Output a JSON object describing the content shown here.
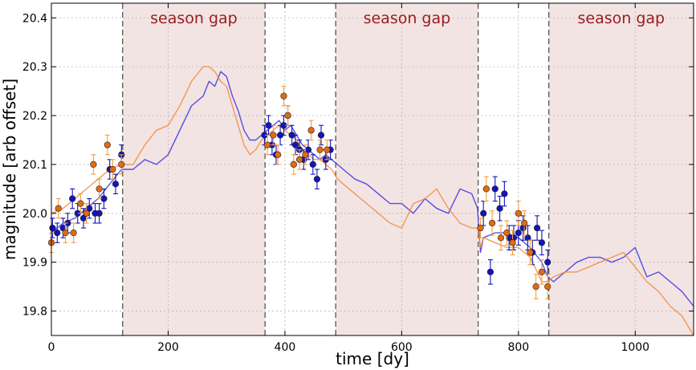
{
  "chart_data": {
    "type": "line",
    "title": "",
    "xlabel": "time [dy]",
    "ylabel": "magnitude [arb offset]",
    "xlim": [
      0,
      1100
    ],
    "ylim": [
      19.75,
      20.43
    ],
    "xticks": [
      0,
      200,
      400,
      600,
      800,
      1000
    ],
    "yticks": [
      19.8,
      19.9,
      20.0,
      20.1,
      20.2,
      20.3,
      20.4
    ],
    "grid": true,
    "legend": "none",
    "colors": {
      "blue_line": "#3a33e0",
      "orange_line": "#f28a3a",
      "blue_points": "#1414b8",
      "orange_points": "#e36a12",
      "orange_errorbar": "#f0a040",
      "gap_fill": "#f3e4e4",
      "gap_text": "#9b1c1c",
      "gap_border": "#555555"
    },
    "shaded_regions": [
      {
        "label": "season gap",
        "x0": 122,
        "x1": 366
      },
      {
        "label": "season gap",
        "x0": 487,
        "x1": 731
      },
      {
        "label": "season gap",
        "x0": 852,
        "x1": 1100
      }
    ],
    "series": [
      {
        "style": "line",
        "color": "#3a33e0",
        "x": [
          0,
          20,
          40,
          60,
          80,
          100,
          120,
          140,
          160,
          180,
          200,
          220,
          240,
          260,
          270,
          280,
          290,
          300,
          310,
          320,
          330,
          340,
          350,
          360,
          370,
          380,
          390,
          400,
          410,
          420,
          430,
          440,
          450,
          460,
          470,
          480,
          490,
          500,
          520,
          540,
          560,
          580,
          600,
          620,
          640,
          660,
          680,
          700,
          720,
          730,
          735,
          740,
          760,
          780,
          800,
          820,
          840,
          850,
          860,
          880,
          900,
          920,
          940,
          960,
          980,
          1000,
          1020,
          1040,
          1060,
          1080,
          1100
        ],
        "y": [
          19.96,
          19.98,
          19.99,
          20.01,
          20.03,
          20.06,
          20.09,
          20.09,
          20.11,
          20.1,
          20.12,
          20.17,
          20.22,
          20.24,
          20.27,
          20.26,
          20.29,
          20.28,
          20.24,
          20.21,
          20.17,
          20.15,
          20.15,
          20.16,
          20.17,
          20.18,
          20.19,
          20.17,
          20.18,
          20.16,
          20.14,
          20.13,
          20.12,
          20.11,
          20.12,
          20.11,
          20.1,
          20.09,
          20.07,
          20.06,
          20.04,
          20.02,
          20.02,
          20.0,
          20.03,
          20.01,
          20.0,
          20.05,
          20.04,
          20.01,
          19.92,
          19.95,
          19.96,
          19.96,
          19.95,
          19.93,
          19.9,
          19.87,
          19.86,
          19.88,
          19.9,
          19.91,
          19.91,
          19.9,
          19.91,
          19.93,
          19.87,
          19.88,
          19.86,
          19.84,
          19.81
        ]
      },
      {
        "style": "line",
        "color": "#f28a3a",
        "x": [
          0,
          20,
          40,
          60,
          80,
          100,
          120,
          140,
          160,
          180,
          200,
          220,
          240,
          260,
          270,
          280,
          290,
          300,
          310,
          320,
          330,
          340,
          350,
          360,
          370,
          380,
          390,
          400,
          410,
          420,
          430,
          440,
          450,
          460,
          470,
          480,
          490,
          500,
          520,
          540,
          560,
          580,
          600,
          620,
          640,
          660,
          680,
          700,
          720,
          730,
          735,
          740,
          760,
          780,
          800,
          820,
          840,
          850,
          860,
          880,
          900,
          920,
          940,
          960,
          980,
          1000,
          1020,
          1040,
          1060,
          1080,
          1100
        ],
        "y": [
          20.0,
          20.01,
          20.03,
          20.05,
          20.07,
          20.09,
          20.1,
          20.1,
          20.14,
          20.17,
          20.18,
          20.22,
          20.27,
          20.3,
          20.3,
          20.29,
          20.27,
          20.26,
          20.22,
          20.18,
          20.14,
          20.12,
          20.13,
          20.15,
          20.16,
          20.17,
          20.18,
          20.17,
          20.16,
          20.15,
          20.13,
          20.12,
          20.11,
          20.11,
          20.1,
          20.09,
          20.07,
          20.06,
          20.04,
          20.02,
          20.0,
          19.98,
          19.97,
          20.02,
          20.03,
          20.05,
          20.01,
          19.98,
          19.97,
          19.97,
          19.93,
          19.95,
          19.94,
          19.93,
          19.93,
          19.91,
          19.86,
          19.86,
          19.87,
          19.88,
          19.88,
          19.89,
          19.9,
          19.91,
          19.92,
          19.89,
          19.86,
          19.84,
          19.81,
          19.79,
          19.75
        ]
      },
      {
        "style": "points",
        "color": "#1414b8",
        "x": [
          2,
          10,
          20,
          28,
          36,
          45,
          55,
          65,
          75,
          82,
          90,
          100,
          110,
          120,
          365,
          372,
          378,
          385,
          392,
          398,
          405,
          412,
          418,
          425,
          432,
          440,
          448,
          455,
          462,
          470,
          478,
          740,
          752,
          760,
          768,
          776,
          784,
          792,
          800,
          808,
          816,
          824,
          832,
          840,
          850
        ],
        "y": [
          19.97,
          19.96,
          19.97,
          19.98,
          20.03,
          20.0,
          19.99,
          20.01,
          20.0,
          20.0,
          20.03,
          20.09,
          20.06,
          20.12,
          20.16,
          20.18,
          20.14,
          20.12,
          20.16,
          20.18,
          20.2,
          20.16,
          20.14,
          20.13,
          20.11,
          20.13,
          20.1,
          20.07,
          20.16,
          20.11,
          20.13,
          20.0,
          19.88,
          20.05,
          20.01,
          20.04,
          19.95,
          19.95,
          19.96,
          19.97,
          19.95,
          19.92,
          19.97,
          19.94,
          19.9
        ],
        "yerr": [
          0.02,
          0.02,
          0.02,
          0.02,
          0.02,
          0.02,
          0.02,
          0.02,
          0.02,
          0.02,
          0.02,
          0.02,
          0.02,
          0.02,
          0.02,
          0.02,
          0.02,
          0.02,
          0.02,
          0.02,
          0.02,
          0.02,
          0.02,
          0.02,
          0.02,
          0.02,
          0.02,
          0.02,
          0.02,
          0.02,
          0.02,
          0.025,
          0.025,
          0.025,
          0.025,
          0.025,
          0.025,
          0.025,
          0.025,
          0.025,
          0.025,
          0.025,
          0.025,
          0.025,
          0.025
        ]
      },
      {
        "style": "points",
        "color": "#e36a12",
        "x": [
          0,
          12,
          24,
          38,
          50,
          60,
          72,
          82,
          96,
          105,
          120,
          370,
          380,
          388,
          398,
          405,
          415,
          425,
          435,
          445,
          460,
          472,
          735,
          745,
          755,
          770,
          780,
          790,
          800,
          810,
          820,
          830,
          840,
          850
        ],
        "y": [
          19.94,
          20.01,
          19.96,
          19.96,
          20.02,
          20.0,
          20.1,
          20.05,
          20.14,
          20.09,
          20.1,
          20.14,
          20.16,
          20.12,
          20.24,
          20.2,
          20.1,
          20.11,
          20.12,
          20.17,
          20.13,
          20.13,
          19.97,
          20.05,
          19.98,
          19.95,
          19.96,
          19.94,
          20.0,
          19.98,
          19.92,
          19.85,
          19.88,
          19.85
        ],
        "yerr": [
          0.02,
          0.02,
          0.02,
          0.02,
          0.02,
          0.02,
          0.02,
          0.02,
          0.02,
          0.02,
          0.02,
          0.02,
          0.02,
          0.02,
          0.02,
          0.02,
          0.02,
          0.02,
          0.02,
          0.02,
          0.02,
          0.02,
          0.02,
          0.025,
          0.025,
          0.025,
          0.025,
          0.025,
          0.025,
          0.025,
          0.025,
          0.025,
          0.025,
          0.025
        ]
      }
    ]
  }
}
